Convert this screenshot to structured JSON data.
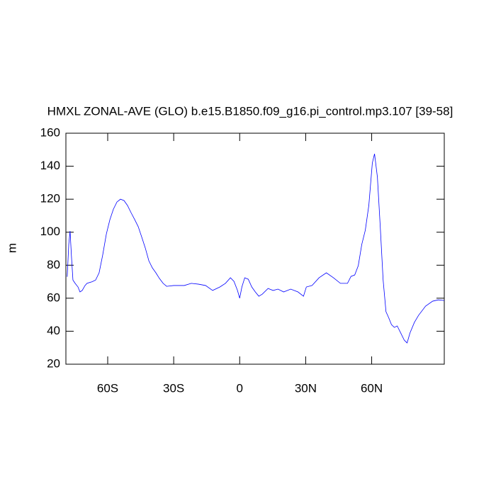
{
  "chart_data": {
    "type": "line",
    "title": "HMXL ZONAL-AVE (GLO) b.e15.B1850.f09_g16.pi_control.mp3.107 [39-58]",
    "y_label": "m",
    "xlim": [
      -79,
      93
    ],
    "ylim": [
      20,
      160
    ],
    "xticks": [
      {
        "value": -60,
        "label": "60S"
      },
      {
        "value": -30,
        "label": "30S"
      },
      0,
      {
        "value": 30,
        "label": "30N"
      },
      {
        "value": 60,
        "label": "60N"
      }
    ],
    "yticks": [
      20,
      40,
      60,
      80,
      100,
      120,
      140,
      160
    ],
    "series": [
      {
        "color": "#0000ff",
        "x": [
          -78.4,
          -77.7,
          -77.1,
          -76.5,
          -75.8,
          -74.8,
          -73.5,
          -72.6,
          -71.6,
          -70.3,
          -69.4,
          -67.1,
          -65.5,
          -63.9,
          -62.3,
          -60.6,
          -59,
          -57.4,
          -55.8,
          -54.2,
          -52.6,
          -51,
          -49.4,
          -47.7,
          -46.1,
          -44.5,
          -42.9,
          -41.3,
          -39.7,
          -38.1,
          -36.5,
          -34.8,
          -33.2,
          -30,
          -25.2,
          -22,
          -18.7,
          -15.5,
          -12.3,
          -9,
          -6.5,
          -4.2,
          -2.6,
          -1,
          0,
          1,
          2.3,
          3.9,
          5.5,
          7.1,
          8.7,
          10.3,
          12.9,
          15.2,
          17.4,
          20,
          23.2,
          26.5,
          29,
          30.3,
          32.9,
          36.1,
          39.4,
          42.6,
          45.8,
          49,
          50.6,
          52.3,
          53.9,
          55.5,
          57.1,
          58.7,
          60.3,
          61.3,
          62.6,
          63.9,
          65.2,
          66.5,
          67.7,
          69,
          70.3,
          71.6,
          73.2,
          74.8,
          76.1,
          77.4,
          79.4,
          81.3,
          84.5,
          87.7,
          90.3,
          93
        ],
        "values": [
          73,
          92.6,
          100.7,
          86,
          71,
          69,
          66.8,
          63.8,
          64.7,
          67.7,
          69,
          70,
          71,
          75.4,
          86,
          99,
          107.6,
          114,
          118.3,
          120,
          119.2,
          116.2,
          111.9,
          107.6,
          103.3,
          96.9,
          90.4,
          82.7,
          78.4,
          75.4,
          72,
          69,
          67.2,
          67.7,
          67.7,
          69,
          68.5,
          67.7,
          64.7,
          66.8,
          69,
          72.4,
          70.2,
          64.7,
          60,
          66.8,
          72.4,
          71.5,
          66.8,
          63.8,
          61.2,
          62.5,
          65.9,
          64.7,
          65.5,
          63.8,
          65.5,
          63.8,
          61.2,
          66.8,
          67.7,
          72.4,
          75.4,
          72.4,
          69,
          69,
          73.2,
          74.1,
          79.7,
          92.6,
          101.2,
          116.2,
          142,
          147.5,
          133.4,
          103.3,
          71.1,
          51.8,
          48.3,
          44,
          42.3,
          43.2,
          38.9,
          34.6,
          32.9,
          38.9,
          45.3,
          49.6,
          55.2,
          58.2,
          59,
          58.6
        ]
      }
    ]
  }
}
